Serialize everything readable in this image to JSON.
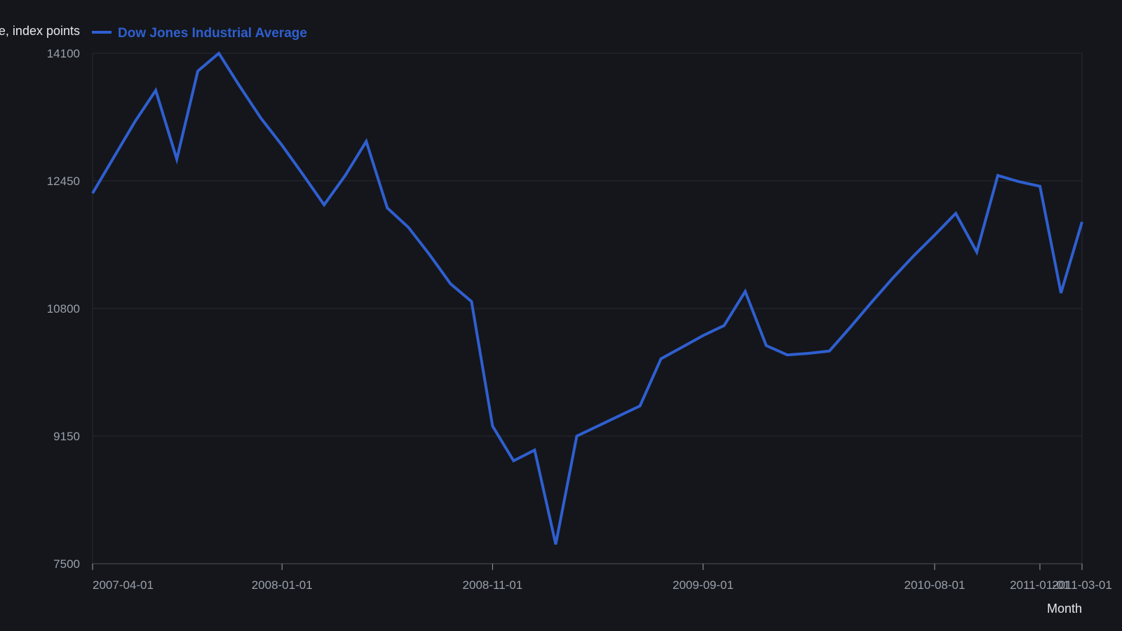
{
  "colors": {
    "background": "#14161b",
    "series": "#2f5fd0",
    "grid": "#262a31",
    "axis": "#3a3f48",
    "tick_text": "#9aa0aa",
    "label_text": "#e6e8ec"
  },
  "chart_data": {
    "type": "line",
    "title": "",
    "xlabel": "Month",
    "ylabel": "Close, index points",
    "ylim": [
      7500,
      14100
    ],
    "grid": true,
    "legend_position": "top-left",
    "y_ticks": [
      "7500",
      "9150",
      "10800",
      "12450",
      "14100"
    ],
    "x_ticks": [
      "2007-04-01",
      "2008-01-01",
      "2008-11-01",
      "2009-09-01",
      "2010-08-01",
      "2011-01-01",
      "2011-03-01"
    ],
    "series": [
      {
        "name": "Dow Jones Industrial Average",
        "x": [
          "2007-04-01",
          "2007-05-01",
          "2007-06-01",
          "2007-07-01",
          "2007-08-01",
          "2007-09-01",
          "2007-10-01",
          "2007-11-01",
          "2007-12-01",
          "2008-01-01",
          "2008-02-01",
          "2008-03-01",
          "2008-04-01",
          "2008-05-01",
          "2008-06-01",
          "2008-07-01",
          "2008-08-01",
          "2008-09-01",
          "2008-10-01",
          "2008-11-01",
          "2008-12-01",
          "2009-01-01",
          "2009-02-01",
          "2009-03-01",
          "2009-04-01",
          "2009-05-01",
          "2009-06-01",
          "2009-07-01",
          "2009-08-01",
          "2009-09-01",
          "2009-10-01",
          "2009-11-01",
          "2009-12-01",
          "2010-01-01",
          "2010-02-01",
          "2010-03-01",
          "2010-04-01",
          "2010-05-01",
          "2010-06-01",
          "2010-07-01",
          "2010-08-01",
          "2010-09-01",
          "2010-10-01",
          "2010-11-01",
          "2010-12-01",
          "2011-01-01",
          "2011-02-01",
          "2011-03-01"
        ],
        "values": [
          12290,
          12750,
          13210,
          13620,
          12730,
          13870,
          14100,
          13670,
          13260,
          12910,
          12530,
          12140,
          12520,
          12960,
          12100,
          11850,
          11500,
          11120,
          10890,
          9280,
          8830,
          8970,
          7750,
          9150,
          9280,
          9410,
          9540,
          10150,
          10300,
          10450,
          10580,
          11020,
          10320,
          10200,
          10220,
          10250,
          10560,
          10880,
          11190,
          11480,
          11750,
          12030,
          11530,
          12520,
          12440,
          12380,
          11000,
          11920
        ]
      }
    ]
  }
}
